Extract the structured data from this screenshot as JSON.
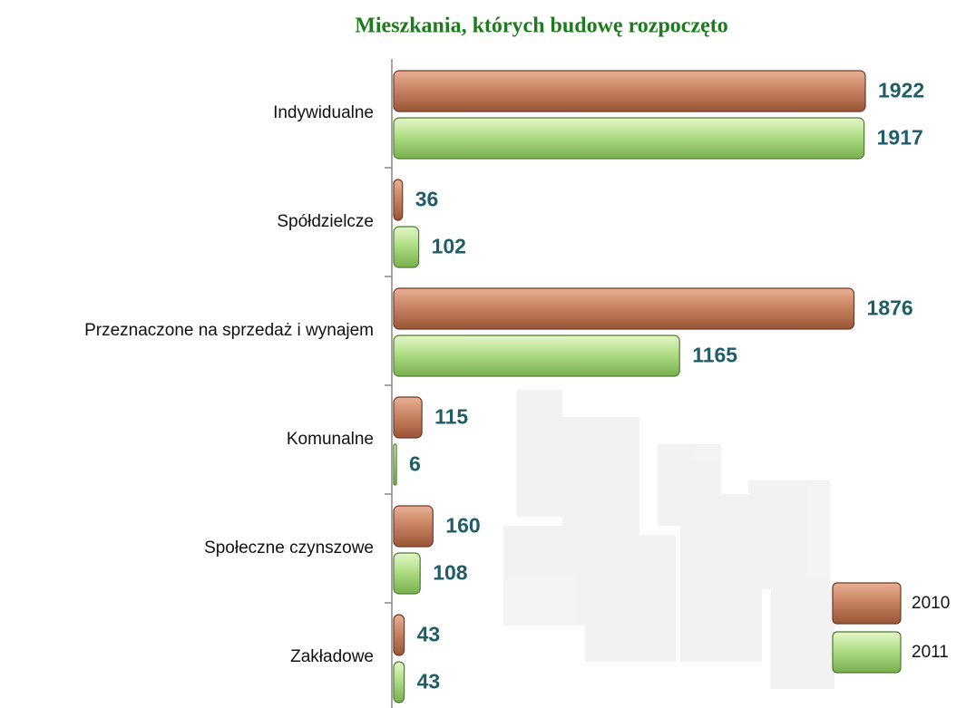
{
  "chart_data": {
    "type": "bar",
    "orientation": "horizontal",
    "title": "Mieszkania, których budowę rozpoczęto",
    "categories": [
      "Indywidualne",
      "Spółdzielcze",
      "Przeznaczone na sprzedaż i wynajem",
      "Komunalne",
      "Społeczne czynszowe",
      "Zakładowe"
    ],
    "series": [
      {
        "name": "2010",
        "color": "#c07a5a",
        "values": [
          1922,
          36,
          1876,
          115,
          160,
          43
        ]
      },
      {
        "name": "2011",
        "color": "#a6d67a",
        "values": [
          1917,
          102,
          1165,
          6,
          108,
          43
        ]
      }
    ],
    "legend": "lower right"
  }
}
